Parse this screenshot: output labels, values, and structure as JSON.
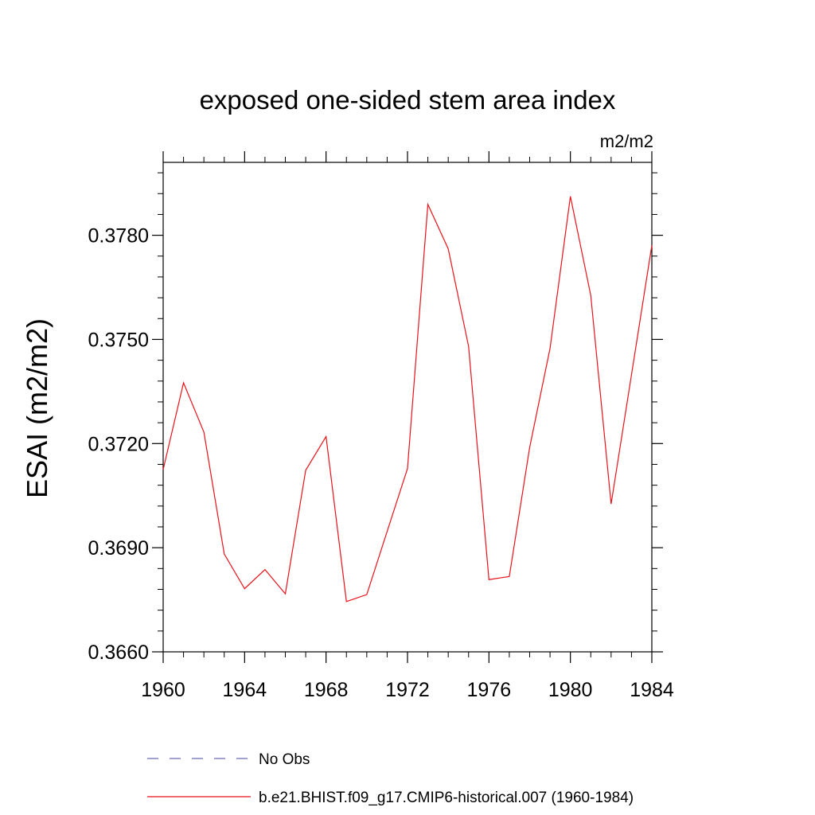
{
  "chart_data": {
    "type": "line",
    "title": "exposed one-sided stem area index",
    "units_label": "m2/m2",
    "ylabel": "ESAI  (m2/m2)",
    "xlabel": "",
    "xlim": [
      1960,
      1984
    ],
    "ylim": [
      0.366,
      0.3801
    ],
    "x_ticks": [
      1960,
      1964,
      1968,
      1972,
      1976,
      1980,
      1984
    ],
    "x_tick_labels": [
      "1960",
      "1964",
      "1968",
      "1972",
      "1976",
      "1980",
      "1984"
    ],
    "y_ticks": [
      0.366,
      0.369,
      0.372,
      0.375,
      0.378
    ],
    "y_tick_labels": [
      "0.3660",
      "0.3690",
      "0.3720",
      "0.3750",
      "0.3780"
    ],
    "y_minor_step": 0.0006,
    "grid": false,
    "legend_position": "bottom",
    "series": [
      {
        "name": "No Obs",
        "color": "#6a6ab8",
        "style": "dashed",
        "x": [],
        "values": []
      },
      {
        "name": "b.e21.BHIST.f09_g17.CMIP6-historical.007 (1960-1984)",
        "color": "#e8121b",
        "style": "solid",
        "x": [
          1960,
          1961,
          1962,
          1963,
          1964,
          1965,
          1966,
          1967,
          1968,
          1969,
          1970,
          1971,
          1972,
          1973,
          1974,
          1975,
          1976,
          1977,
          1978,
          1979,
          1980,
          1981,
          1982,
          1983,
          1984
        ],
        "values": [
          0.37125,
          0.37375,
          0.37233,
          0.36882,
          0.36782,
          0.36837,
          0.36767,
          0.37123,
          0.3722,
          0.36745,
          0.36765,
          0.36947,
          0.37128,
          0.37889,
          0.37761,
          0.3748,
          0.36808,
          0.36817,
          0.37189,
          0.37474,
          0.37912,
          0.37627,
          0.37026,
          0.37398,
          0.37771
        ]
      }
    ]
  }
}
